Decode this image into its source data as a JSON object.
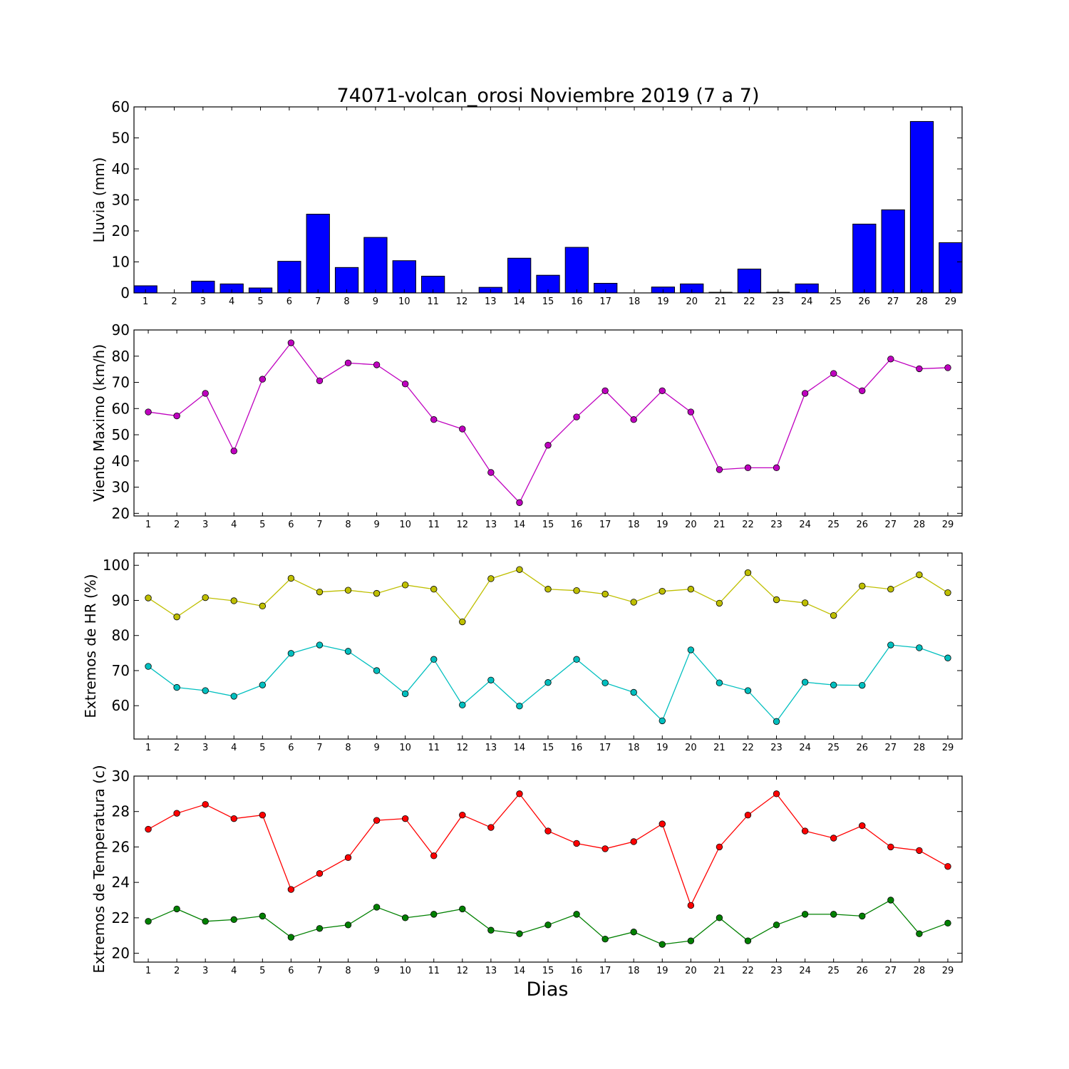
{
  "figure": {
    "title": "74071-volcan_orosi Noviembre 2019  (7 a 7)",
    "xlabel": "Dias"
  },
  "chart_data": [
    {
      "type": "bar",
      "ylabel": "Lluvia (mm)",
      "categories": [
        1,
        2,
        3,
        4,
        5,
        6,
        7,
        8,
        9,
        10,
        11,
        12,
        13,
        14,
        15,
        16,
        17,
        18,
        19,
        20,
        21,
        22,
        23,
        24,
        25,
        26,
        27,
        28,
        29
      ],
      "ylim": [
        0,
        60
      ],
      "yticks": [
        0,
        10,
        20,
        30,
        40,
        50,
        60
      ],
      "series": [
        {
          "color": "#0000ff",
          "values": [
            2.3,
            0,
            3.8,
            2.9,
            1.6,
            10.2,
            25.4,
            8.2,
            17.9,
            10.4,
            5.4,
            0,
            1.8,
            11.2,
            5.7,
            14.7,
            3.1,
            0,
            1.9,
            2.9,
            0.2,
            7.7,
            0.2,
            2.9,
            0,
            22.2,
            26.8,
            55.3,
            16.2
          ]
        }
      ]
    },
    {
      "type": "line",
      "ylabel": "Viento Maximo (km/h)",
      "categories": [
        1,
        2,
        3,
        4,
        5,
        6,
        7,
        8,
        9,
        10,
        11,
        12,
        13,
        14,
        15,
        16,
        17,
        18,
        19,
        20,
        21,
        22,
        23,
        24,
        25,
        26,
        27,
        28,
        29
      ],
      "ylim": [
        19,
        90
      ],
      "yticks": [
        20,
        30,
        40,
        50,
        60,
        70,
        80,
        90
      ],
      "series": [
        {
          "color": "#bf00bf",
          "values": [
            58.7,
            57.2,
            65.8,
            43.8,
            71.2,
            85.1,
            70.6,
            77.4,
            76.7,
            69.4,
            55.8,
            52.2,
            35.6,
            24.1,
            46.0,
            56.8,
            66.8,
            55.8,
            66.8,
            58.7,
            36.7,
            37.4,
            37.4,
            65.8,
            73.4,
            66.8,
            78.9,
            75.2,
            75.6
          ]
        }
      ]
    },
    {
      "type": "line",
      "ylabel": "Extremos de HR (%)",
      "categories": [
        1,
        2,
        3,
        4,
        5,
        6,
        7,
        8,
        9,
        10,
        11,
        12,
        13,
        14,
        15,
        16,
        17,
        18,
        19,
        20,
        21,
        22,
        23,
        24,
        25,
        26,
        27,
        28,
        29
      ],
      "ylim": [
        50.5,
        103.5
      ],
      "yticks": [
        60,
        70,
        80,
        90,
        100
      ],
      "series": [
        {
          "color": "#bfbf00",
          "values": [
            90.7,
            85.3,
            90.8,
            89.9,
            88.4,
            96.3,
            92.4,
            92.9,
            92.0,
            94.4,
            93.2,
            83.9,
            96.2,
            98.8,
            93.2,
            92.8,
            91.8,
            89.5,
            92.6,
            93.2,
            89.2,
            97.9,
            90.2,
            89.3,
            85.7,
            94.1,
            93.2,
            97.3,
            92.2
          ]
        },
        {
          "color": "#00bfbf",
          "values": [
            71.2,
            65.2,
            64.3,
            62.7,
            65.9,
            74.9,
            77.3,
            75.5,
            70.0,
            63.4,
            73.2,
            60.2,
            67.3,
            59.9,
            66.6,
            73.2,
            66.5,
            63.8,
            55.7,
            75.9,
            66.5,
            64.3,
            55.5,
            66.7,
            65.9,
            65.8,
            77.3,
            76.5,
            73.6
          ]
        }
      ]
    },
    {
      "type": "line",
      "ylabel": "Extremos de Temperatura (c)",
      "categories": [
        1,
        2,
        3,
        4,
        5,
        6,
        7,
        8,
        9,
        10,
        11,
        12,
        13,
        14,
        15,
        16,
        17,
        18,
        19,
        20,
        21,
        22,
        23,
        24,
        25,
        26,
        27,
        28,
        29
      ],
      "ylim": [
        19.5,
        30
      ],
      "yticks": [
        20,
        22,
        24,
        26,
        28,
        30
      ],
      "series": [
        {
          "color": "#ff0000",
          "values": [
            27.0,
            27.9,
            28.4,
            27.6,
            27.8,
            23.6,
            24.5,
            25.4,
            27.5,
            27.6,
            25.5,
            27.8,
            27.1,
            29.0,
            26.9,
            26.2,
            25.9,
            26.3,
            27.3,
            22.7,
            26.0,
            27.8,
            29.0,
            26.9,
            26.5,
            27.2,
            26.0,
            25.8,
            24.9
          ]
        },
        {
          "color": "#008000",
          "values": [
            21.8,
            22.5,
            21.8,
            21.9,
            22.1,
            20.9,
            21.4,
            21.6,
            22.6,
            22.0,
            22.2,
            22.5,
            21.3,
            21.1,
            21.6,
            22.2,
            20.8,
            21.2,
            20.5,
            20.7,
            22.0,
            20.7,
            21.6,
            22.2,
            22.2,
            22.1,
            23.0,
            21.1,
            21.7
          ]
        }
      ]
    }
  ]
}
